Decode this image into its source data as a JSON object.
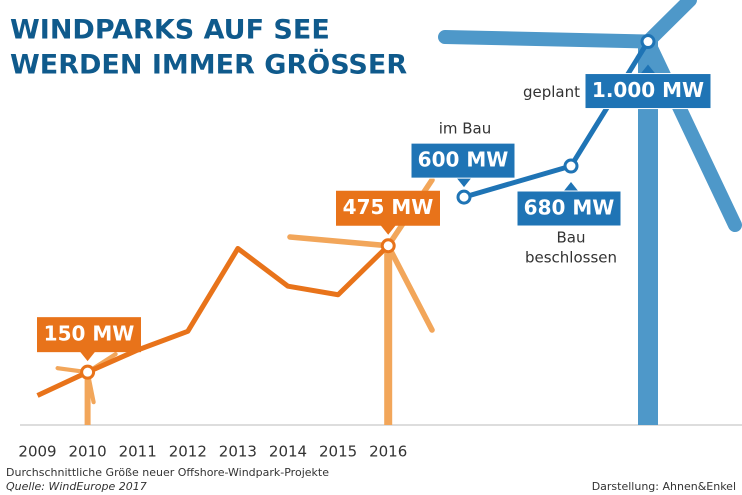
{
  "chart_data": {
    "type": "line",
    "title": [
      "WINDPARKS AUF SEE",
      "WERDEN IMMER GRÖSSER"
    ],
    "subtitle": "Durchschnittliche Größe neuer Offshore-Windpark-Projekte",
    "source": "Quelle: WindEurope 2017",
    "credit": "Darstellung: Ahnen&Enkel",
    "categories": [
      "2009",
      "2010",
      "2011",
      "2012",
      "2013",
      "2014",
      "2015",
      "2016"
    ],
    "values": [
      90,
      150,
      207,
      255,
      468,
      371,
      349,
      475
    ],
    "value_labels": [
      null,
      "150 MW",
      null,
      null,
      null,
      null,
      null,
      "475 MW"
    ],
    "color": "#e8731a",
    "ylim": [
      0,
      1100
    ],
    "projects": {
      "color": "#1f74b5",
      "items": [
        {
          "status": [
            "im Bau"
          ],
          "value": 600,
          "value_label": "600 MW"
        },
        {
          "status": [
            "Bau",
            "beschlossen"
          ],
          "value": 680,
          "value_label": "680 MW"
        },
        {
          "status": [
            "geplant"
          ],
          "value": 1000,
          "value_label": "1.000 MW"
        }
      ]
    }
  }
}
